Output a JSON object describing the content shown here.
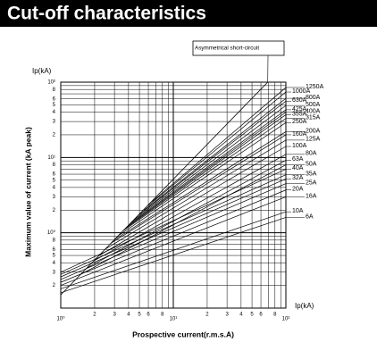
{
  "chart_data": {
    "type": "line",
    "title": "Cut-off characteristics",
    "ylabel_top": "Ip(kA)",
    "y_axis_label": "Maximum value of current (kA peak)",
    "x_axis_label": "Prospective current(r.m.s.A)",
    "xlabel_right": "Ip(kA)",
    "log_x": true,
    "log_y": true,
    "grid": true,
    "color": "#000000",
    "xlim": [
      1,
      100
    ],
    "ylim": [
      0.1,
      100
    ],
    "xticks": [
      {
        "value": 1,
        "label": "10⁰"
      },
      2,
      3,
      4,
      5,
      6,
      8,
      {
        "value": 10,
        "label": "10¹"
      },
      {
        "value": 20,
        "label": "2"
      },
      {
        "value": 30,
        "label": "3"
      },
      {
        "value": 40,
        "label": "4"
      },
      {
        "value": 50,
        "label": "5"
      },
      {
        "value": 60,
        "label": "6"
      },
      {
        "value": 80,
        "label": "8"
      },
      {
        "value": 100,
        "label": "10²"
      }
    ],
    "xminor": [
      7,
      9,
      70,
      90
    ],
    "yticks": [
      {
        "value": 0.2,
        "label": "2"
      },
      {
        "value": 0.3,
        "label": "3"
      },
      {
        "value": 0.4,
        "label": "4"
      },
      {
        "value": 0.5,
        "label": "5"
      },
      {
        "value": 0.6,
        "label": "6"
      },
      {
        "value": 0.8,
        "label": "8"
      },
      {
        "value": 1,
        "label": "10⁰"
      },
      2,
      3,
      4,
      5,
      6,
      8,
      {
        "value": 10,
        "label": "10¹"
      },
      {
        "value": 20,
        "label": "2"
      },
      {
        "value": 30,
        "label": "3"
      },
      {
        "value": 40,
        "label": "4"
      },
      {
        "value": 50,
        "label": "5"
      },
      {
        "value": 60,
        "label": "6"
      },
      {
        "value": 80,
        "label": "8"
      },
      {
        "value": 100,
        "label": "10²"
      }
    ],
    "yminor": [
      0.7,
      0.9,
      7,
      9,
      70,
      90
    ],
    "asymmetric": {
      "name": "Asymmetrical short-circuit",
      "x": [
        1,
        69
      ],
      "values": [
        0.15,
        100
      ]
    },
    "series": [
      {
        "name": "1250A",
        "x": [
          6.5,
          100
        ],
        "values": [
          2.6,
          85
        ]
      },
      {
        "name": "1000A",
        "x": [
          6,
          100
        ],
        "values": [
          2.3,
          74
        ]
      },
      {
        "name": "800A",
        "x": [
          5.5,
          100
        ],
        "values": [
          2.0,
          61
        ]
      },
      {
        "name": "630A",
        "x": [
          5,
          100
        ],
        "values": [
          1.75,
          56
        ]
      },
      {
        "name": "500A",
        "x": [
          4.5,
          100
        ],
        "values": [
          1.5,
          49
        ]
      },
      {
        "name": "425A",
        "x": [
          4.2,
          100
        ],
        "values": [
          1.35,
          43
        ]
      },
      {
        "name": "400A",
        "x": [
          4,
          100
        ],
        "values": [
          1.25,
          40
        ]
      },
      {
        "name": "355A",
        "x": [
          3.8,
          100
        ],
        "values": [
          1.16,
          37
        ]
      },
      {
        "name": "315A",
        "x": [
          3.6,
          100
        ],
        "values": [
          1.07,
          33
        ]
      },
      {
        "name": "250A",
        "x": [
          3.3,
          100
        ],
        "values": [
          0.93,
          29
        ]
      },
      {
        "name": "200A",
        "x": [
          3,
          100
        ],
        "values": [
          0.81,
          22
        ]
      },
      {
        "name": "160A",
        "x": [
          2.8,
          100
        ],
        "values": [
          0.73,
          20
        ]
      },
      {
        "name": "125A",
        "x": [
          2.5,
          100
        ],
        "values": [
          0.61,
          17
        ]
      },
      {
        "name": "100A",
        "x": [
          2.2,
          100
        ],
        "values": [
          0.5,
          14
        ]
      },
      {
        "name": "80A",
        "x": [
          2,
          100
        ],
        "values": [
          0.43,
          11
        ]
      },
      {
        "name": "63A",
        "x": [
          1.7,
          100
        ],
        "values": [
          0.34,
          9.2
        ]
      },
      {
        "name": "50A",
        "x": [
          1.5,
          100
        ],
        "values": [
          0.28,
          8.0
        ]
      },
      {
        "name": "40A",
        "x": [
          1,
          100
        ],
        "values": [
          0.3,
          7.0
        ]
      },
      {
        "name": "35A",
        "x": [
          1,
          100
        ],
        "values": [
          0.28,
          5.9
        ]
      },
      {
        "name": "32A",
        "x": [
          1,
          100
        ],
        "values": [
          0.26,
          5.2
        ]
      },
      {
        "name": "25A",
        "x": [
          1,
          100
        ],
        "values": [
          0.24,
          4.5
        ]
      },
      {
        "name": "20A",
        "x": [
          1,
          100
        ],
        "values": [
          0.22,
          3.7
        ]
      },
      {
        "name": "16A",
        "x": [
          1,
          100
        ],
        "values": [
          0.2,
          3.0
        ]
      },
      {
        "name": "10A",
        "x": [
          1,
          100
        ],
        "values": [
          0.18,
          1.9
        ]
      },
      {
        "name": "6A",
        "x": [
          1,
          100
        ],
        "values": [
          0.16,
          1.6
        ]
      }
    ]
  }
}
